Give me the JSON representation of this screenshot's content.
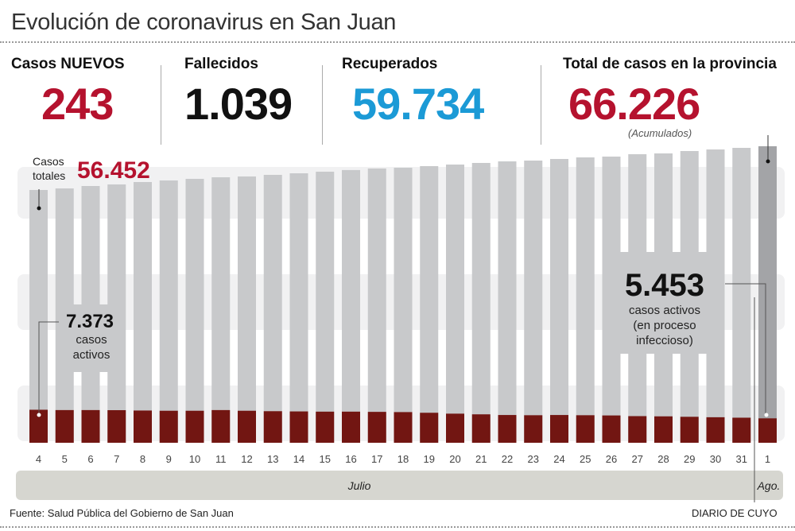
{
  "header": {
    "title": "Evolución de coronavirus en San Juan"
  },
  "stats": [
    {
      "label": "Casos NUEVOS",
      "value": "243",
      "color": "#b5122e"
    },
    {
      "label": "Fallecidos",
      "value": "1.039",
      "color": "#111111"
    },
    {
      "label": "Recuperados",
      "value": "59.734",
      "color": "#1b9ad6"
    },
    {
      "label": "Total de casos en la provincia",
      "value": "66.226",
      "color": "#b5122e",
      "note": "(Acumulados)"
    }
  ],
  "annotations": {
    "totales_label_1": "Casos",
    "totales_label_2": "totales",
    "totales_value": "56.452",
    "activos_start_value": "7.373",
    "activos_start_1": "casos",
    "activos_start_2": "activos",
    "activos_end_value": "5.453",
    "activos_end_1": "casos activos",
    "activos_end_2": "(en proceso",
    "activos_end_3": "infeccioso)"
  },
  "chart_data": {
    "type": "bar",
    "categories": [
      "4",
      "5",
      "6",
      "7",
      "8",
      "9",
      "10",
      "11",
      "12",
      "13",
      "14",
      "15",
      "16",
      "17",
      "18",
      "19",
      "20",
      "21",
      "22",
      "23",
      "24",
      "25",
      "26",
      "27",
      "28",
      "29",
      "30",
      "31",
      "1"
    ],
    "months": [
      {
        "label": "Julio"
      },
      {
        "label": "Ago."
      }
    ],
    "series": [
      {
        "name": "Casos totales",
        "color": "#c8c9cb",
        "highlight_color": "#a3a4a7",
        "values": [
          56452,
          56800,
          57340,
          57690,
          58230,
          58580,
          58940,
          59290,
          59470,
          59830,
          60180,
          60540,
          60900,
          61250,
          61420,
          61780,
          62130,
          62490,
          62840,
          63020,
          63380,
          63730,
          63910,
          64440,
          64620,
          65150,
          65500,
          65860,
          66226
        ]
      },
      {
        "name": "casos activos",
        "color": "#721612",
        "values": [
          7373,
          7300,
          7300,
          7280,
          7200,
          7150,
          7150,
          7300,
          7150,
          7050,
          7000,
          6950,
          6950,
          6900,
          6850,
          6700,
          6500,
          6350,
          6200,
          6150,
          6200,
          6150,
          6100,
          5950,
          5900,
          5800,
          5700,
          5600,
          5453
        ]
      }
    ],
    "grid": false
  },
  "footer": {
    "source": "Fuente: Salud Pública del Gobierno de San Juan",
    "brand": "DIARIO DE CUYO"
  }
}
